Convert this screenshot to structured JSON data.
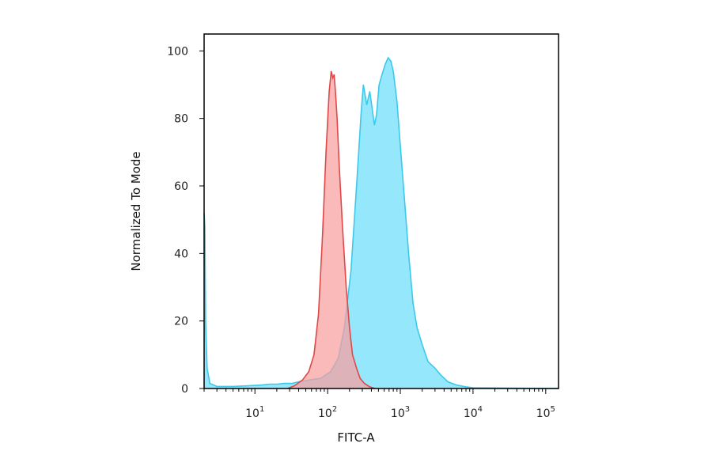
{
  "chart_data": {
    "type": "area",
    "xlabel": "FITC-A",
    "ylabel": "Normalized To Mode",
    "xscale": "log",
    "xlim": [
      2,
      150000
    ],
    "ylim": [
      0,
      105
    ],
    "yticks": [
      0,
      20,
      40,
      60,
      80,
      100
    ],
    "xticks": [
      {
        "value": 10,
        "base": "10",
        "exp": "1"
      },
      {
        "value": 100,
        "base": "10",
        "exp": "2"
      },
      {
        "value": 1000,
        "base": "10",
        "exp": "3"
      },
      {
        "value": 10000,
        "base": "10",
        "exp": "4"
      },
      {
        "value": 100000,
        "base": "10",
        "exp": "5"
      }
    ],
    "grid": false,
    "legend": "none",
    "series": [
      {
        "color": "#3ec8ea",
        "fill": "#8fe6fb",
        "points": [
          [
            2.0,
            52
          ],
          [
            2.05,
            48
          ],
          [
            2.1,
            20
          ],
          [
            2.2,
            6
          ],
          [
            2.4,
            1.5
          ],
          [
            3,
            0.6
          ],
          [
            5,
            0.6
          ],
          [
            8,
            0.8
          ],
          [
            12,
            1.0
          ],
          [
            16,
            1.3
          ],
          [
            20,
            1.3
          ],
          [
            25,
            1.5
          ],
          [
            32,
            1.5
          ],
          [
            40,
            2.0
          ],
          [
            55,
            2.5
          ],
          [
            80,
            3
          ],
          [
            110,
            5
          ],
          [
            140,
            9
          ],
          [
            170,
            18
          ],
          [
            210,
            35
          ],
          [
            250,
            60
          ],
          [
            290,
            82
          ],
          [
            310,
            90
          ],
          [
            345,
            84
          ],
          [
            380,
            88
          ],
          [
            410,
            83
          ],
          [
            440,
            78
          ],
          [
            470,
            81
          ],
          [
            510,
            90
          ],
          [
            560,
            93
          ],
          [
            620,
            96
          ],
          [
            680,
            98
          ],
          [
            740,
            97
          ],
          [
            800,
            94
          ],
          [
            900,
            85
          ],
          [
            1000,
            72
          ],
          [
            1150,
            55
          ],
          [
            1300,
            40
          ],
          [
            1500,
            25
          ],
          [
            1700,
            18
          ],
          [
            2000,
            13
          ],
          [
            2400,
            8
          ],
          [
            3000,
            6
          ],
          [
            3600,
            4
          ],
          [
            4500,
            2
          ],
          [
            6000,
            1
          ],
          [
            8000,
            0.5
          ],
          [
            10000,
            0.2
          ],
          [
            150000,
            0
          ]
        ]
      },
      {
        "color": "#e04848",
        "fill": "#f9a0a0",
        "points": [
          [
            28,
            0
          ],
          [
            35,
            0.8
          ],
          [
            45,
            2.5
          ],
          [
            55,
            5
          ],
          [
            65,
            10
          ],
          [
            75,
            22
          ],
          [
            85,
            45
          ],
          [
            95,
            70
          ],
          [
            105,
            88
          ],
          [
            112,
            94
          ],
          [
            118,
            92
          ],
          [
            123,
            93
          ],
          [
            128,
            88
          ],
          [
            135,
            80
          ],
          [
            145,
            65
          ],
          [
            160,
            48
          ],
          [
            180,
            30
          ],
          [
            200,
            18
          ],
          [
            220,
            10
          ],
          [
            250,
            6
          ],
          [
            280,
            3
          ],
          [
            320,
            1.5
          ],
          [
            380,
            0.5
          ],
          [
            450,
            0
          ]
        ]
      }
    ]
  }
}
